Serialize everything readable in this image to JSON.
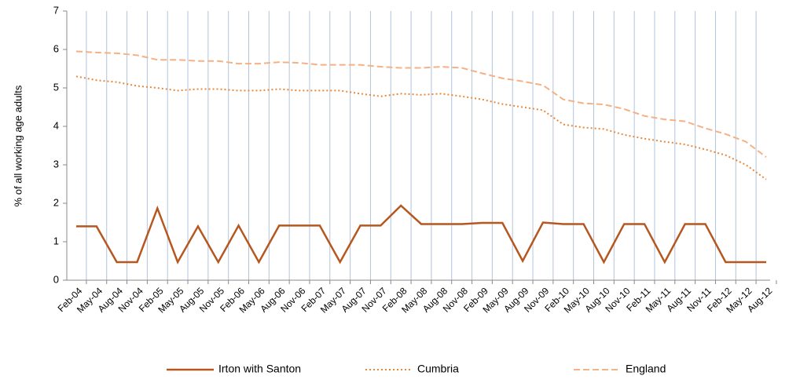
{
  "chart_data": {
    "type": "line",
    "y_label": "% of all working age adults",
    "categories": [
      "Feb-04",
      "May-04",
      "Aug-04",
      "Nov-04",
      "Feb-05",
      "May-05",
      "Aug-05",
      "Nov-05",
      "Feb-06",
      "May-06",
      "Aug-06",
      "Nov-06",
      "Feb-07",
      "May-07",
      "Aug-07",
      "Nov-07",
      "Feb-08",
      "May-08",
      "Aug-08",
      "Nov-08",
      "Feb-09",
      "May-09",
      "Aug-09",
      "Nov-09",
      "Feb-10",
      "May-10",
      "Aug-10",
      "Nov-10",
      "Feb-11",
      "May-11",
      "Aug-11",
      "Nov-11",
      "Feb-12",
      "May-12",
      "Aug-12"
    ],
    "series": [
      {
        "name": "Irton with Santon",
        "color": "#b5571f",
        "dash": "solid",
        "values": [
          1.4,
          1.4,
          0.47,
          0.47,
          1.87,
          0.47,
          1.4,
          0.47,
          1.42,
          0.47,
          1.42,
          1.42,
          1.42,
          0.47,
          1.42,
          1.42,
          1.94,
          1.46,
          1.46,
          1.46,
          1.49,
          1.49,
          0.5,
          1.5,
          1.46,
          1.46,
          0.47,
          1.46,
          1.46,
          0.47,
          1.46,
          1.46,
          0.47,
          0.47,
          0.47
        ]
      },
      {
        "name": "Cumbria",
        "color": "#e8883a",
        "dash": "dotted",
        "values": [
          5.3,
          5.2,
          5.15,
          5.05,
          5.0,
          4.93,
          4.97,
          4.97,
          4.93,
          4.93,
          4.97,
          4.93,
          4.93,
          4.93,
          4.85,
          4.78,
          4.85,
          4.82,
          4.85,
          4.78,
          4.7,
          4.58,
          4.5,
          4.42,
          4.05,
          3.97,
          3.93,
          3.78,
          3.68,
          3.6,
          3.53,
          3.4,
          3.25,
          3.0,
          2.62
        ]
      },
      {
        "name": "England",
        "color": "#f5b183",
        "dash": "dashed",
        "values": [
          5.95,
          5.92,
          5.9,
          5.85,
          5.73,
          5.73,
          5.7,
          5.7,
          5.63,
          5.63,
          5.67,
          5.65,
          5.6,
          5.6,
          5.6,
          5.55,
          5.52,
          5.52,
          5.55,
          5.52,
          5.38,
          5.25,
          5.17,
          5.07,
          4.7,
          4.6,
          4.57,
          4.45,
          4.27,
          4.18,
          4.13,
          3.95,
          3.8,
          3.6,
          3.2
        ]
      }
    ],
    "ylim": [
      0,
      7
    ],
    "yticks": [
      0,
      1,
      2,
      3,
      4,
      5,
      6,
      7
    ],
    "legend": "bottom"
  }
}
